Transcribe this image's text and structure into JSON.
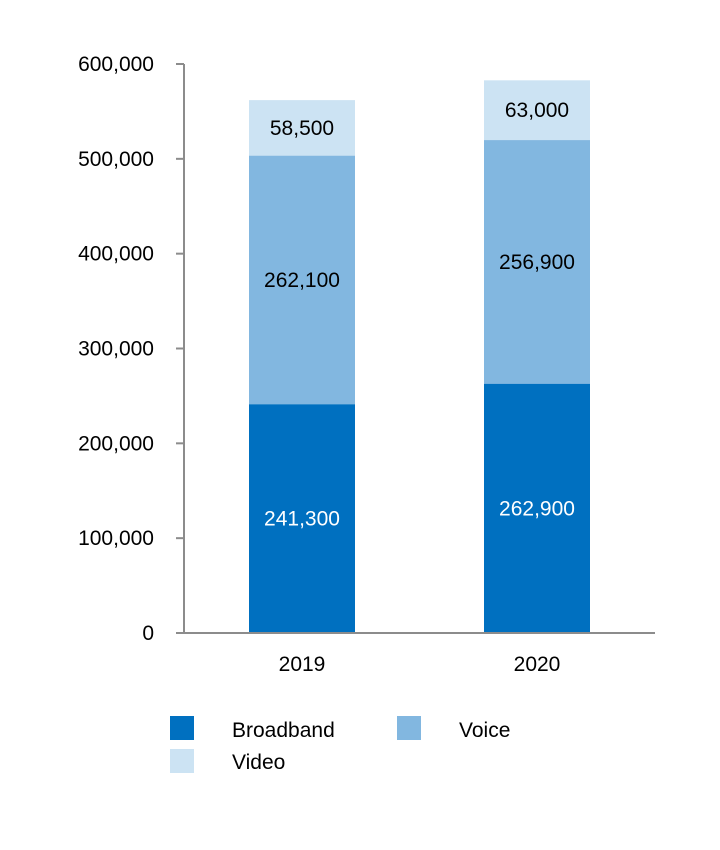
{
  "chart_data": {
    "type": "bar",
    "stacked": true,
    "title": "",
    "xlabel": "",
    "ylabel": "",
    "categories": [
      "2019",
      "2020"
    ],
    "ylim": [
      0,
      600000
    ],
    "yticks": [
      0,
      100000,
      200000,
      300000,
      400000,
      500000,
      600000
    ],
    "ytick_labels": [
      "0",
      "100,000",
      "200,000",
      "300,000",
      "400,000",
      "500,000",
      "600,000"
    ],
    "grid": false,
    "legend_position": "bottom",
    "series": [
      {
        "name": "Broadband",
        "color": "#0070C0",
        "label_color": "#ffffff",
        "values": [
          241300,
          262900
        ],
        "labels": [
          "241,300",
          "262,900"
        ]
      },
      {
        "name": "Voice",
        "color": "#82B7E0",
        "label_color": "#000000",
        "values": [
          262100,
          256900
        ],
        "labels": [
          "262,100",
          "256,900"
        ]
      },
      {
        "name": "Video",
        "color": "#CCE3F3",
        "label_color": "#000000",
        "values": [
          58500,
          63000
        ],
        "labels": [
          "58,500",
          "63,000"
        ]
      }
    ]
  }
}
